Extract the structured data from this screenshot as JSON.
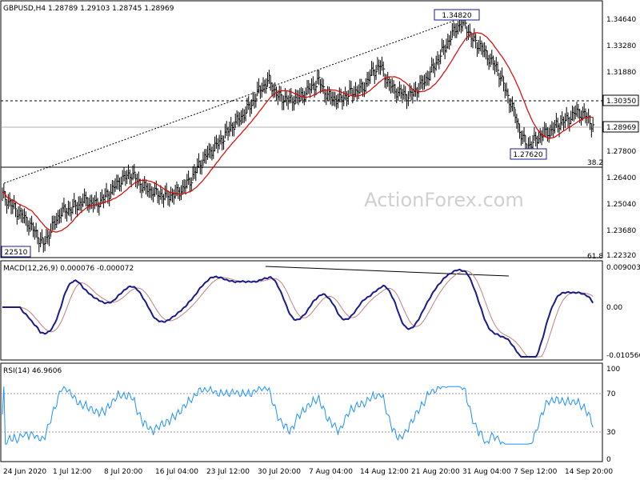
{
  "chart_data": [
    {
      "type": "candlestick",
      "title": "GBPUSD,H4",
      "ohlc_label": "1.28789 1.29103 1.28745 1.28969",
      "ylim": [
        1.2232,
        1.3464
      ],
      "y_ticks": [
        "1.34640",
        "1.33280",
        "1.31880",
        "1.30350",
        "1.28969",
        "1.27800",
        "1.26400",
        "1.25040",
        "1.23680",
        "1.22320"
      ],
      "highlighted_ticks": [
        "1.30350",
        "1.28969"
      ],
      "x_labels": [
        "24 Jun 2020",
        "1 Jul 12:00",
        "8 Jul 20:00",
        "16 Jul 04:00",
        "23 Jul 12:00",
        "30 Jul 20:00",
        "7 Aug 04:00",
        "14 Aug 12:00",
        "21 Aug 20:00",
        "31 Aug 04:00",
        "7 Sep 12:00",
        "14 Sep 20:00"
      ],
      "annotations": [
        "1.34820",
        "1.27620",
        "22510"
      ],
      "fib_labels": [
        "38.2",
        "61.8"
      ],
      "moving_average_color": "#e00000",
      "close_path": [
        [
          0,
          1.255
        ],
        [
          8,
          1.248
        ],
        [
          16,
          1.242
        ],
        [
          22,
          1.236
        ],
        [
          28,
          1.229
        ],
        [
          34,
          1.238
        ],
        [
          40,
          1.246
        ],
        [
          48,
          1.248
        ],
        [
          56,
          1.252
        ],
        [
          64,
          1.25
        ],
        [
          72,
          1.255
        ],
        [
          80,
          1.262
        ],
        [
          88,
          1.266
        ],
        [
          96,
          1.259
        ],
        [
          104,
          1.256
        ],
        [
          112,
          1.254
        ],
        [
          120,
          1.256
        ],
        [
          128,
          1.262
        ],
        [
          134,
          1.27
        ],
        [
          140,
          1.276
        ],
        [
          148,
          1.282
        ],
        [
          156,
          1.29
        ],
        [
          164,
          1.296
        ],
        [
          170,
          1.302
        ],
        [
          176,
          1.31
        ],
        [
          182,
          1.314
        ],
        [
          188,
          1.306
        ],
        [
          196,
          1.304
        ],
        [
          204,
          1.306
        ],
        [
          210,
          1.31
        ],
        [
          216,
          1.314
        ],
        [
          222,
          1.306
        ],
        [
          230,
          1.304
        ],
        [
          238,
          1.308
        ],
        [
          246,
          1.31
        ],
        [
          252,
          1.318
        ],
        [
          258,
          1.322
        ],
        [
          264,
          1.312
        ],
        [
          270,
          1.308
        ],
        [
          278,
          1.306
        ],
        [
          286,
          1.312
        ],
        [
          292,
          1.318
        ],
        [
          298,
          1.326
        ],
        [
          304,
          1.334
        ],
        [
          310,
          1.342
        ],
        [
          316,
          1.344
        ],
        [
          320,
          1.336
        ],
        [
          326,
          1.332
        ],
        [
          332,
          1.326
        ],
        [
          338,
          1.32
        ],
        [
          342,
          1.312
        ],
        [
          346,
          1.304
        ],
        [
          350,
          1.296
        ],
        [
          354,
          1.286
        ],
        [
          358,
          1.28
        ],
        [
          362,
          1.282
        ],
        [
          368,
          1.286
        ],
        [
          374,
          1.288
        ],
        [
          380,
          1.292
        ],
        [
          386,
          1.294
        ],
        [
          392,
          1.298
        ],
        [
          398,
          1.296
        ],
        [
          404,
          1.29
        ]
      ]
    },
    {
      "type": "line",
      "title": "MACD(12,26,9) 0.000076 -0.000072",
      "ylim": [
        -0.010566,
        0.009003
      ],
      "y_ticks": [
        "0.009003",
        "0.00",
        "-0.010566"
      ],
      "series_colors": [
        "#1a1a8c",
        "#c08080"
      ]
    },
    {
      "type": "line",
      "title": "RSI(14) 46.9606",
      "ylim": [
        0,
        100
      ],
      "y_ticks": [
        "100",
        "70",
        "30",
        "0"
      ],
      "line_color": "#1e90ff"
    }
  ],
  "watermark": "ActionForex.com"
}
